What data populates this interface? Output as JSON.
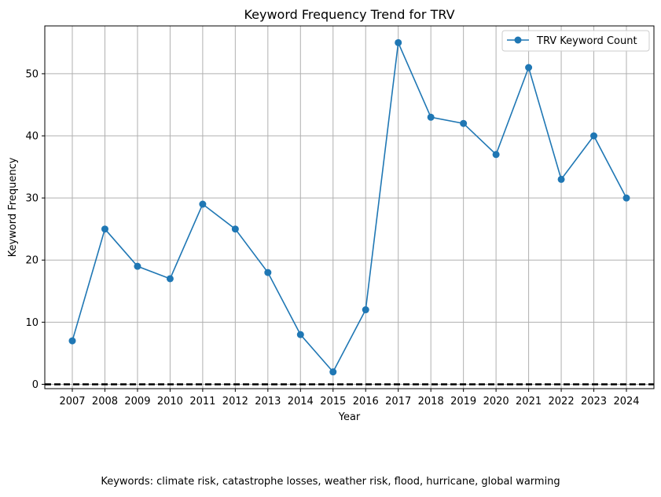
{
  "chart_data": {
    "type": "line",
    "title": "Keyword Frequency Trend for TRV",
    "xlabel": "Year",
    "ylabel": "Keyword Frequency",
    "categories": [
      "2007",
      "2008",
      "2009",
      "2010",
      "2011",
      "2012",
      "2013",
      "2014",
      "2015",
      "2016",
      "2017",
      "2018",
      "2019",
      "2020",
      "2021",
      "2022",
      "2023",
      "2024"
    ],
    "series": [
      {
        "name": "TRV Keyword Count",
        "values": [
          7,
          25,
          19,
          17,
          29,
          25,
          18,
          8,
          2,
          12,
          55,
          43,
          42,
          37,
          51,
          33,
          40,
          30
        ],
        "color": "#1f77b4"
      }
    ],
    "ylim": [
      -0.7,
      57.7
    ],
    "yticks": [
      0,
      10,
      20,
      30,
      40,
      50
    ],
    "reference_line": {
      "y": 0,
      "style": "dashed",
      "color": "#000000"
    },
    "grid": true,
    "legend_position": "top-right"
  },
  "caption": "Keywords: climate risk, catastrophe losses, weather risk, flood, hurricane, global warming"
}
